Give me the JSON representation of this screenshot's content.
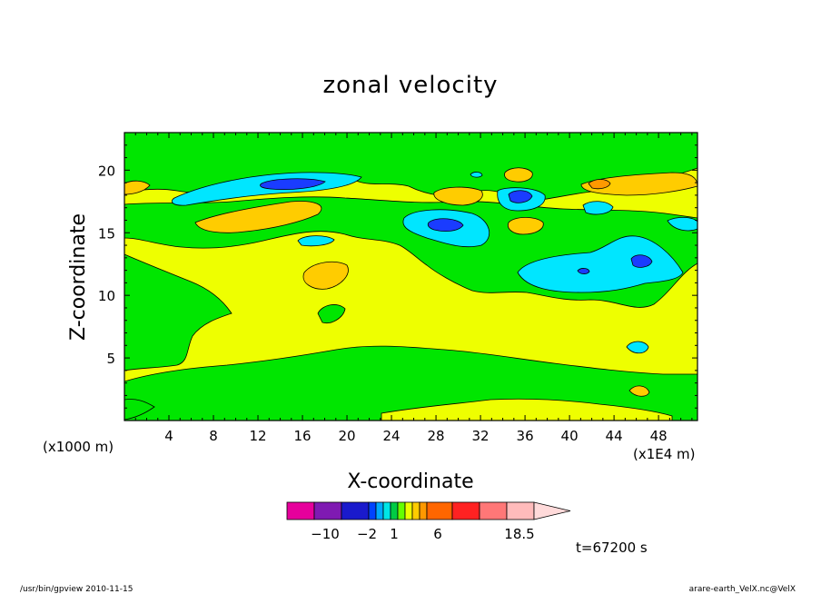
{
  "chart_data": {
    "type": "heatmap",
    "title": "zonal velocity",
    "xlabel": "X-coordinate",
    "ylabel": "Z-coordinate",
    "x_unit_left": "(x1000 m)",
    "x_unit_right": "(x1E4 m)",
    "xlim": [
      0,
      51.5
    ],
    "ylim": [
      0,
      23
    ],
    "xticks": [
      "4",
      "8",
      "12",
      "16",
      "20",
      "24",
      "28",
      "32",
      "36",
      "40",
      "44",
      "48"
    ],
    "yticks": [
      "5",
      "10",
      "15",
      "20"
    ],
    "time_label": "t=67200 s",
    "colorbar": {
      "tick_labels": [
        "-10",
        "-2",
        "1",
        "6",
        "18.5"
      ],
      "colors": [
        "#e6009c",
        "#7f1ab2",
        "#1a1acc",
        "#0044ff",
        "#00aaff",
        "#00e6e6",
        "#00cc44",
        "#66ff00",
        "#eeff00",
        "#ffcc00",
        "#ff9900",
        "#ff6600",
        "#ff2222",
        "#ff7777",
        "#ffbbbb"
      ]
    },
    "regions": [
      {
        "level": "-2 to 1",
        "color": "#00e600"
      },
      {
        "level": "1 to 2",
        "color": "#eeff00"
      },
      {
        "level": "2 to 3",
        "color": "#ffcc00"
      },
      {
        "level": "3 to 4",
        "color": "#ff9900"
      },
      {
        "level": "-3 to -2",
        "color": "#00e6ff"
      },
      {
        "level": "-4 to -3",
        "color": "#1a3cff"
      }
    ]
  },
  "footer": {
    "left": "/usr/bin/gpview   2010-11-15",
    "right": "arare-earth_VelX.nc@VelX"
  }
}
